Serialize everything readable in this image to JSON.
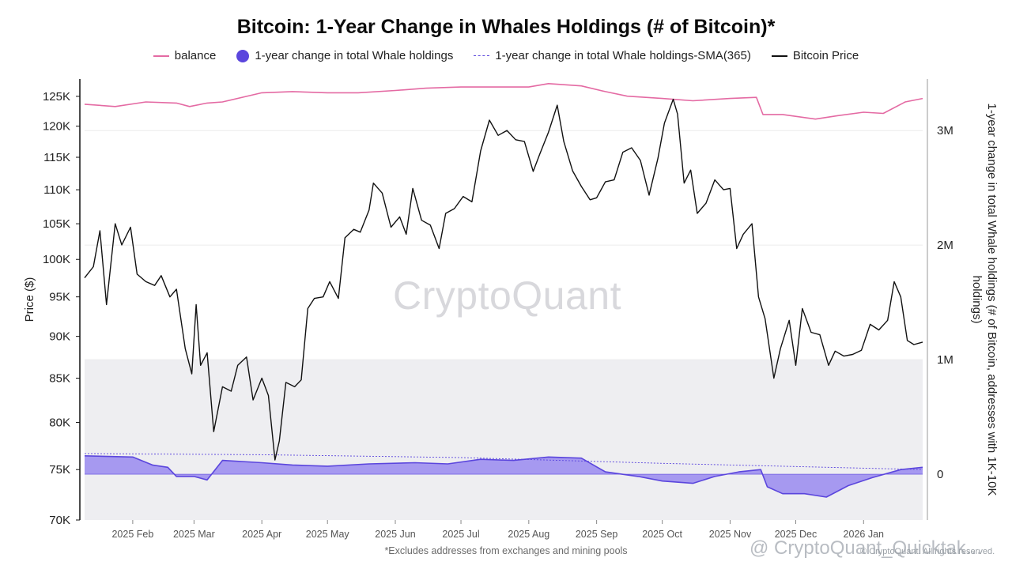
{
  "chart_data": {
    "type": "line",
    "title": "Bitcoin: 1-Year Change in Whales Holdings (# of Bitcoin)*",
    "footnote": "*Excludes addresses from exchanges and mining pools",
    "watermark": "CryptoQuant",
    "source_credit": "© CryptoQuant. All rights reserved.",
    "platform_credit": "@ CryptoQuant_Quicktak...",
    "legend": [
      "balance",
      "1-year change in total Whale holdings",
      "1-year change in total Whale holdings-SMA(365)",
      "Bitcoin Price"
    ],
    "legend_placement": "top-center",
    "grid": false,
    "x_axis": {
      "type": "date",
      "range": [
        "2025-01-10",
        "2026-01-28"
      ],
      "ticks": [
        "2025 Feb",
        "2025 Mar",
        "2025 Apr",
        "2025 May",
        "2025 Jun",
        "2025 Jul",
        "2025 Aug",
        "2025 Sep",
        "2025 Oct",
        "2025 Nov",
        "2025 Dec",
        "2026 Jan"
      ]
    },
    "y_left": {
      "label": "Price ($)",
      "scale": "log",
      "range": [
        70000,
        128000
      ],
      "ticks": [
        "70K",
        "75K",
        "80K",
        "85K",
        "90K",
        "95K",
        "100K",
        "105K",
        "110K",
        "115K",
        "120K",
        "125K"
      ],
      "tick_values": [
        70000,
        75000,
        80000,
        85000,
        90000,
        95000,
        100000,
        105000,
        110000,
        115000,
        120000,
        125000
      ]
    },
    "y_right": {
      "label": "1-year change in total Whale holdings (# of Bitcoin, addresses with 1K-10K holdings)",
      "range": [
        -400000,
        3450000
      ],
      "ticks": [
        "0",
        "1M",
        "2M",
        "3M"
      ],
      "tick_values": [
        0,
        1000000,
        2000000,
        3000000
      ]
    },
    "shaded_band": {
      "axis": "right",
      "from": -400000,
      "to": 1000000
    },
    "series": [
      {
        "name": "Bitcoin Price",
        "axis": "left",
        "color": "#111111",
        "x": [
          "2025-01-10",
          "2025-01-14",
          "2025-01-17",
          "2025-01-20",
          "2025-01-24",
          "2025-01-27",
          "2025-01-31",
          "2025-02-03",
          "2025-02-07",
          "2025-02-11",
          "2025-02-14",
          "2025-02-18",
          "2025-02-21",
          "2025-02-25",
          "2025-02-28",
          "2025-03-02",
          "2025-03-04",
          "2025-03-07",
          "2025-03-10",
          "2025-03-14",
          "2025-03-18",
          "2025-03-21",
          "2025-03-25",
          "2025-03-28",
          "2025-04-01",
          "2025-04-04",
          "2025-04-07",
          "2025-04-09",
          "2025-04-12",
          "2025-04-16",
          "2025-04-19",
          "2025-04-22",
          "2025-04-25",
          "2025-04-29",
          "2025-05-02",
          "2025-05-06",
          "2025-05-09",
          "2025-05-13",
          "2025-05-16",
          "2025-05-20",
          "2025-05-22",
          "2025-05-26",
          "2025-05-30",
          "2025-06-03",
          "2025-06-06",
          "2025-06-09",
          "2025-06-13",
          "2025-06-17",
          "2025-06-21",
          "2025-06-24",
          "2025-06-28",
          "2025-07-02",
          "2025-07-06",
          "2025-07-10",
          "2025-07-14",
          "2025-07-18",
          "2025-07-22",
          "2025-07-26",
          "2025-07-30",
          "2025-08-03",
          "2025-08-06",
          "2025-08-10",
          "2025-08-14",
          "2025-08-17",
          "2025-08-21",
          "2025-08-25",
          "2025-08-29",
          "2025-09-01",
          "2025-09-05",
          "2025-09-09",
          "2025-09-13",
          "2025-09-17",
          "2025-09-21",
          "2025-09-25",
          "2025-09-29",
          "2025-10-02",
          "2025-10-06",
          "2025-10-08",
          "2025-10-11",
          "2025-10-14",
          "2025-10-17",
          "2025-10-21",
          "2025-10-25",
          "2025-10-29",
          "2025-11-01",
          "2025-11-04",
          "2025-11-07",
          "2025-11-11",
          "2025-11-14",
          "2025-11-17",
          "2025-11-21",
          "2025-11-24",
          "2025-11-28",
          "2025-12-01",
          "2025-12-04",
          "2025-12-08",
          "2025-12-12",
          "2025-12-16",
          "2025-12-19",
          "2025-12-23",
          "2025-12-27",
          "2025-12-31",
          "2026-01-04",
          "2026-01-08",
          "2026-01-12",
          "2026-01-15",
          "2026-01-18",
          "2026-01-21",
          "2026-01-24",
          "2026-01-28"
        ],
        "values": [
          97500,
          99000,
          104000,
          94000,
          105000,
          102000,
          104500,
          98000,
          97000,
          96500,
          97800,
          95000,
          96000,
          88500,
          85500,
          94000,
          86500,
          88000,
          79000,
          84000,
          83500,
          86500,
          87500,
          82500,
          85000,
          83000,
          76000,
          78000,
          84500,
          84000,
          84800,
          93500,
          94800,
          95000,
          97000,
          94800,
          103000,
          104200,
          103800,
          107000,
          111000,
          109500,
          104500,
          106000,
          103500,
          110200,
          105500,
          104800,
          101500,
          106500,
          107200,
          109000,
          108200,
          116000,
          121000,
          118500,
          119300,
          117800,
          117500,
          112800,
          115500,
          119000,
          123500,
          117500,
          112900,
          110500,
          108500,
          108800,
          111200,
          111500,
          115800,
          116500,
          114500,
          109200,
          114800,
          120500,
          124500,
          122000,
          111000,
          113000,
          106500,
          108000,
          111500,
          110000,
          110200,
          101500,
          103500,
          105000,
          95000,
          92200,
          85000,
          88500,
          92000,
          86500,
          93500,
          90500,
          90200,
          86500,
          88200,
          87600,
          87800,
          88300,
          91500,
          90800,
          92000,
          97000,
          95000,
          89500,
          89000,
          89300
        ]
      },
      {
        "name": "balance",
        "axis": "right",
        "color": "#e46aa3",
        "x": [
          "2025-01-10",
          "2025-01-24",
          "2025-02-07",
          "2025-02-21",
          "2025-02-27",
          "2025-03-07",
          "2025-03-14",
          "2025-04-01",
          "2025-04-15",
          "2025-05-01",
          "2025-05-15",
          "2025-06-01",
          "2025-06-15",
          "2025-07-01",
          "2025-07-15",
          "2025-08-01",
          "2025-08-10",
          "2025-08-25",
          "2025-09-05",
          "2025-09-15",
          "2025-10-01",
          "2025-10-15",
          "2025-11-01",
          "2025-11-13",
          "2025-11-16",
          "2025-11-25",
          "2025-12-10",
          "2025-12-20",
          "2026-01-01",
          "2026-01-10",
          "2026-01-20",
          "2026-01-28"
        ],
        "values": [
          3230000,
          3210000,
          3250000,
          3240000,
          3210000,
          3240000,
          3250000,
          3330000,
          3340000,
          3330000,
          3330000,
          3350000,
          3370000,
          3380000,
          3380000,
          3380000,
          3410000,
          3390000,
          3340000,
          3300000,
          3280000,
          3260000,
          3280000,
          3290000,
          3140000,
          3140000,
          3100000,
          3130000,
          3160000,
          3150000,
          3250000,
          3280000
        ]
      },
      {
        "name": "1-year change in total Whale holdings",
        "axis": "right",
        "color": "#5b46dd",
        "fill": "#9d8ff0",
        "x": [
          "2025-01-10",
          "2025-02-01",
          "2025-02-10",
          "2025-02-17",
          "2025-02-21",
          "2025-03-01",
          "2025-03-07",
          "2025-03-14",
          "2025-04-01",
          "2025-04-15",
          "2025-05-01",
          "2025-05-20",
          "2025-06-10",
          "2025-06-25",
          "2025-07-10",
          "2025-07-25",
          "2025-08-10",
          "2025-08-25",
          "2025-09-05",
          "2025-09-20",
          "2025-10-01",
          "2025-10-15",
          "2025-10-25",
          "2025-11-05",
          "2025-11-15",
          "2025-11-18",
          "2025-11-25",
          "2025-12-05",
          "2025-12-15",
          "2025-12-25",
          "2026-01-05",
          "2026-01-18",
          "2026-01-28"
        ],
        "values": [
          160000,
          150000,
          80000,
          60000,
          -20000,
          -20000,
          -50000,
          120000,
          100000,
          80000,
          70000,
          90000,
          100000,
          90000,
          130000,
          120000,
          150000,
          140000,
          20000,
          -20000,
          -60000,
          -80000,
          -20000,
          20000,
          40000,
          -110000,
          -170000,
          -170000,
          -200000,
          -100000,
          -30000,
          40000,
          60000
        ]
      },
      {
        "name": "1-year change in total Whale holdings-SMA(365)",
        "axis": "right",
        "color": "#5b46dd",
        "dashed": true,
        "x": [
          "2025-01-10",
          "2025-04-01",
          "2025-07-01",
          "2025-10-01",
          "2026-01-28"
        ],
        "values": [
          180000,
          170000,
          145000,
          95000,
          40000
        ]
      }
    ]
  }
}
